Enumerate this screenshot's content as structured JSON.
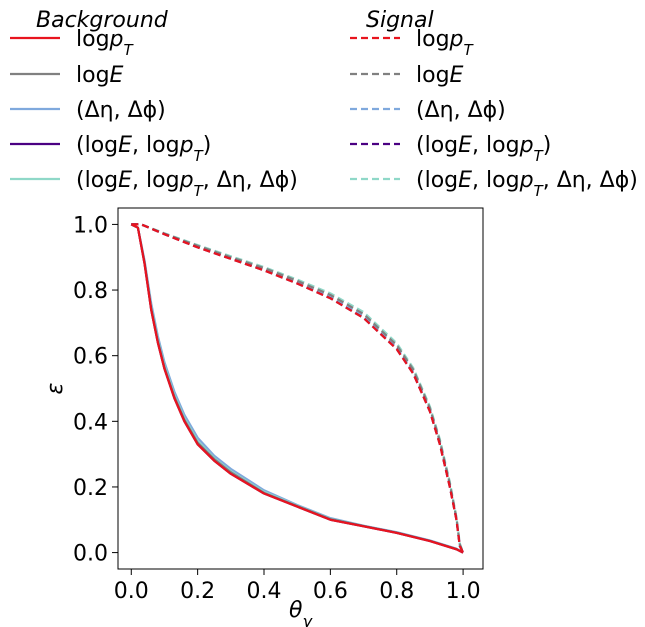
{
  "chart_data": {
    "type": "line",
    "xlabel": "θ_γ",
    "ylabel": "ε",
    "xlim": [
      -0.04,
      1.06
    ],
    "ylim": [
      -0.05,
      1.05
    ],
    "xticks": [
      0.0,
      0.2,
      0.4,
      0.6,
      0.8,
      1.0
    ],
    "yticks": [
      0.0,
      0.2,
      0.4,
      0.6,
      0.8,
      1.0
    ],
    "grid": false,
    "legend_placement": "top",
    "legend_groups": [
      {
        "title": "Background",
        "linestyle": "solid"
      },
      {
        "title": "Signal",
        "linestyle": "dashed"
      }
    ],
    "series_labels": [
      {
        "base": "log",
        "var": "p",
        "sub": "T",
        "color": "#e8141e"
      },
      {
        "base": "log",
        "var": "E",
        "sub": "",
        "color": "#808080"
      },
      {
        "base": "(Δη, Δϕ)",
        "var": "",
        "sub": "",
        "color": "#7fa9dd"
      },
      {
        "base": "(logE, logp",
        "var": "",
        "sub": "T",
        "suffix": ")",
        "color": "#4b0082"
      },
      {
        "base": "(logE, logp",
        "var": "",
        "sub": "T",
        "suffix": ", Δη, Δϕ)",
        "color": "#8fd8c8"
      }
    ],
    "series": [
      {
        "name": "Background logp_T",
        "group": "Background",
        "color": "#e8141e",
        "x": [
          0.0,
          0.02,
          0.04,
          0.06,
          0.08,
          0.1,
          0.13,
          0.16,
          0.2,
          0.25,
          0.3,
          0.4,
          0.5,
          0.6,
          0.7,
          0.8,
          0.9,
          0.98,
          1.0
        ],
        "y": [
          1.0,
          0.99,
          0.88,
          0.74,
          0.64,
          0.56,
          0.47,
          0.4,
          0.33,
          0.28,
          0.24,
          0.18,
          0.14,
          0.1,
          0.08,
          0.06,
          0.035,
          0.01,
          0.0
        ]
      },
      {
        "name": "Background logE",
        "group": "Background",
        "color": "#808080",
        "x": [
          0.0,
          0.02,
          0.04,
          0.06,
          0.08,
          0.1,
          0.13,
          0.16,
          0.2,
          0.25,
          0.3,
          0.4,
          0.5,
          0.6,
          0.7,
          0.8,
          0.9,
          0.98,
          1.0
        ],
        "y": [
          1.0,
          0.99,
          0.885,
          0.745,
          0.645,
          0.565,
          0.475,
          0.405,
          0.335,
          0.285,
          0.245,
          0.182,
          0.142,
          0.102,
          0.081,
          0.061,
          0.036,
          0.011,
          0.0
        ]
      },
      {
        "name": "Background (Δη, Δϕ)",
        "group": "Background",
        "color": "#7fa9dd",
        "x": [
          0.0,
          0.02,
          0.04,
          0.06,
          0.08,
          0.1,
          0.13,
          0.16,
          0.2,
          0.25,
          0.3,
          0.4,
          0.5,
          0.6,
          0.7,
          0.8,
          0.9,
          0.98,
          1.0
        ],
        "y": [
          1.0,
          0.99,
          0.89,
          0.76,
          0.66,
          0.58,
          0.49,
          0.42,
          0.35,
          0.295,
          0.255,
          0.19,
          0.145,
          0.105,
          0.082,
          0.062,
          0.037,
          0.012,
          0.0
        ]
      },
      {
        "name": "Background (logE, logp_T)",
        "group": "Background",
        "color": "#4b0082",
        "x": [
          0.0,
          0.02,
          0.04,
          0.06,
          0.08,
          0.1,
          0.13,
          0.16,
          0.2,
          0.25,
          0.3,
          0.4,
          0.5,
          0.6,
          0.7,
          0.8,
          0.9,
          0.98,
          1.0
        ],
        "y": [
          1.0,
          0.99,
          0.88,
          0.74,
          0.64,
          0.56,
          0.47,
          0.4,
          0.33,
          0.28,
          0.24,
          0.18,
          0.14,
          0.1,
          0.08,
          0.06,
          0.035,
          0.01,
          0.0
        ]
      },
      {
        "name": "Background (logE, logp_T, Δη, Δϕ)",
        "group": "Background",
        "color": "#8fd8c8",
        "x": [
          0.0,
          0.02,
          0.04,
          0.06,
          0.08,
          0.1,
          0.13,
          0.16,
          0.2,
          0.25,
          0.3,
          0.4,
          0.5,
          0.6,
          0.7,
          0.8,
          0.9,
          0.98,
          1.0
        ],
        "y": [
          1.0,
          0.99,
          0.885,
          0.75,
          0.65,
          0.57,
          0.48,
          0.41,
          0.34,
          0.288,
          0.248,
          0.185,
          0.143,
          0.103,
          0.081,
          0.061,
          0.036,
          0.011,
          0.0
        ]
      },
      {
        "name": "Signal logp_T",
        "group": "Signal",
        "color": "#e8141e",
        "x": [
          0.0,
          0.03,
          0.1,
          0.2,
          0.3,
          0.4,
          0.5,
          0.6,
          0.7,
          0.8,
          0.85,
          0.9,
          0.93,
          0.96,
          0.98,
          0.99,
          1.0
        ],
        "y": [
          1.0,
          1.0,
          0.97,
          0.93,
          0.895,
          0.86,
          0.82,
          0.775,
          0.715,
          0.62,
          0.545,
          0.43,
          0.33,
          0.2,
          0.1,
          0.02,
          0.0
        ]
      },
      {
        "name": "Signal logE",
        "group": "Signal",
        "color": "#808080",
        "x": [
          0.0,
          0.03,
          0.1,
          0.2,
          0.3,
          0.4,
          0.5,
          0.6,
          0.7,
          0.8,
          0.85,
          0.9,
          0.93,
          0.96,
          0.98,
          0.99,
          1.0
        ],
        "y": [
          1.0,
          1.0,
          0.972,
          0.935,
          0.9,
          0.867,
          0.828,
          0.785,
          0.727,
          0.632,
          0.557,
          0.44,
          0.34,
          0.21,
          0.105,
          0.025,
          0.0
        ]
      },
      {
        "name": "Signal (Δη, Δϕ)",
        "group": "Signal",
        "color": "#7fa9dd",
        "x": [
          0.0,
          0.03,
          0.1,
          0.2,
          0.3,
          0.4,
          0.5,
          0.6,
          0.7,
          0.8,
          0.85,
          0.9,
          0.93,
          0.96,
          0.98,
          0.99,
          1.0
        ],
        "y": [
          1.0,
          1.0,
          0.97,
          0.932,
          0.897,
          0.862,
          0.823,
          0.779,
          0.72,
          0.625,
          0.55,
          0.435,
          0.335,
          0.205,
          0.102,
          0.022,
          0.0
        ]
      },
      {
        "name": "Signal (logE, logp_T)",
        "group": "Signal",
        "color": "#4b0082",
        "x": [
          0.0,
          0.03,
          0.1,
          0.2,
          0.3,
          0.4,
          0.5,
          0.6,
          0.7,
          0.8,
          0.85,
          0.9,
          0.93,
          0.96,
          0.98,
          0.99,
          1.0
        ],
        "y": [
          1.0,
          1.0,
          0.97,
          0.93,
          0.895,
          0.86,
          0.82,
          0.775,
          0.715,
          0.62,
          0.545,
          0.43,
          0.33,
          0.2,
          0.1,
          0.02,
          0.0
        ]
      },
      {
        "name": "Signal (logE, logp_T, Δη, Δϕ)",
        "group": "Signal",
        "color": "#8fd8c8",
        "x": [
          0.0,
          0.03,
          0.1,
          0.2,
          0.3,
          0.4,
          0.5,
          0.6,
          0.7,
          0.8,
          0.85,
          0.9,
          0.93,
          0.96,
          0.98,
          0.99,
          1.0
        ],
        "y": [
          1.0,
          1.0,
          0.973,
          0.937,
          0.903,
          0.87,
          0.832,
          0.79,
          0.733,
          0.638,
          0.562,
          0.445,
          0.345,
          0.215,
          0.108,
          0.028,
          0.0
        ]
      }
    ]
  }
}
